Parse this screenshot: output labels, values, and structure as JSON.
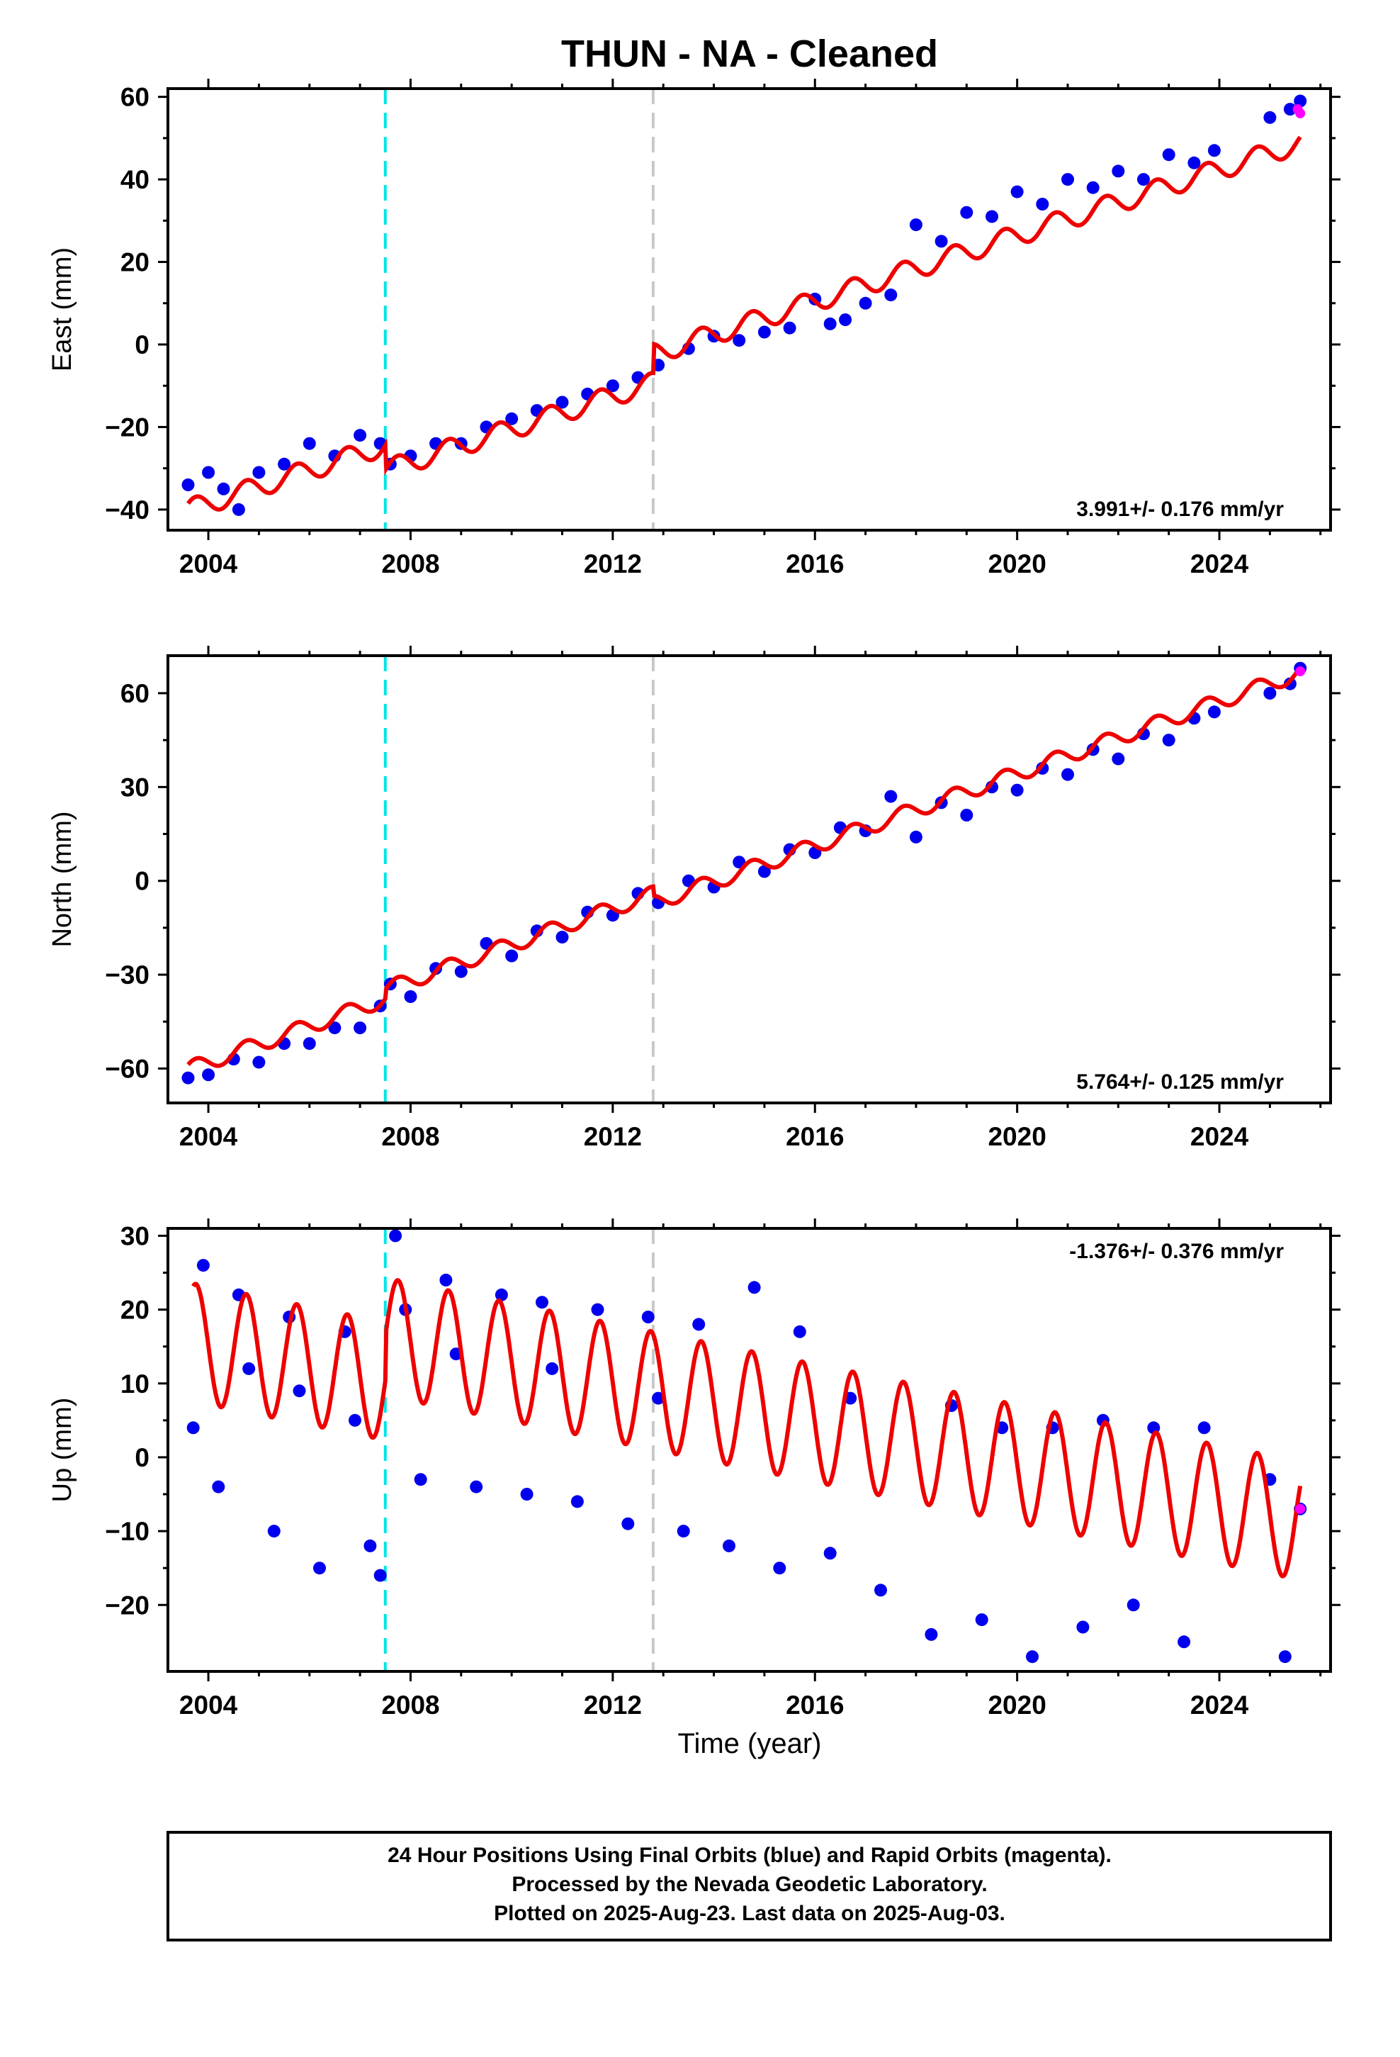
{
  "chart_data": {
    "type": "scatter",
    "title": "THUN  - NA - Cleaned",
    "xlabel": "Time (year)",
    "xlim": [
      2003.2,
      2026.2
    ],
    "x_ticks": [
      2004,
      2008,
      2012,
      2016,
      2020,
      2024
    ],
    "x_tick_labels": [
      "2004",
      "2008",
      "2012",
      "2016",
      "2020",
      "2024"
    ],
    "events": [
      {
        "x": 2007.5,
        "color": "#00e5e5",
        "style": "dashed"
      },
      {
        "x": 2012.8,
        "color": "#c8c8c8",
        "style": "dashed"
      }
    ],
    "colors": {
      "final_orbits": "#0000ee",
      "rapid_orbits": "#ff00ff",
      "model": "#ee0000"
    },
    "panels": [
      {
        "name": "east",
        "ylabel": "East (mm)",
        "ylim": [
          -45,
          62
        ],
        "y_ticks": [
          -40,
          -20,
          0,
          20,
          40,
          60
        ],
        "y_tick_labels": [
          "−40",
          "−20",
          "0",
          "20",
          "40",
          "60"
        ],
        "rate_label": "3.991+/- 0.176 mm/yr",
        "rate_position": "bottom-right",
        "final_orbits": {
          "x": [
            2003.6,
            2004.0,
            2004.3,
            2004.6,
            2005.0,
            2005.5,
            2006.0,
            2006.5,
            2007.0,
            2007.4,
            2007.6,
            2008.0,
            2008.5,
            2009.0,
            2009.5,
            2010.0,
            2010.5,
            2011.0,
            2011.5,
            2012.0,
            2012.5,
            2012.9,
            2013.5,
            2014.0,
            2014.5,
            2015.0,
            2015.5,
            2016.0,
            2016.3,
            2016.6,
            2017.0,
            2017.5,
            2018.0,
            2018.5,
            2019.0,
            2019.5,
            2020.0,
            2020.5,
            2021.0,
            2021.5,
            2022.0,
            2022.5,
            2023.0,
            2023.5,
            2023.9,
            2025.0,
            2025.4,
            2025.6
          ],
          "y": [
            -34,
            -31,
            -35,
            -40,
            -31,
            -29,
            -24,
            -27,
            -22,
            -24,
            -29,
            -27,
            -24,
            -24,
            -20,
            -18,
            -16,
            -14,
            -12,
            -10,
            -8,
            -5,
            -1,
            2,
            1,
            3,
            4,
            11,
            5,
            6,
            10,
            12,
            29,
            25,
            32,
            31,
            37,
            34,
            40,
            38,
            42,
            40,
            46,
            44,
            47,
            55,
            57,
            59
          ]
        },
        "rapid_orbits": {
          "x": [
            2025.55,
            2025.6
          ],
          "y": [
            57,
            56
          ]
        },
        "model": {
          "rate": 3.991,
          "offsets": [
            {
              "x": 2007.5,
              "dy": -6
            },
            {
              "x": 2012.8,
              "dy": 7
            }
          ],
          "seasonal_amplitude": 2.5,
          "value_at_2015": 5.5
        }
      },
      {
        "name": "north",
        "ylabel": "North (mm)",
        "ylim": [
          -71,
          72
        ],
        "y_ticks": [
          -60,
          -30,
          0,
          30,
          60
        ],
        "y_tick_labels": [
          "−60",
          "−30",
          "0",
          "30",
          "60"
        ],
        "rate_label": "5.764+/- 0.125 mm/yr",
        "rate_position": "bottom-right",
        "final_orbits": {
          "x": [
            2003.6,
            2004.0,
            2004.5,
            2005.0,
            2005.5,
            2006.0,
            2006.5,
            2007.0,
            2007.4,
            2007.6,
            2008.0,
            2008.5,
            2009.0,
            2009.5,
            2010.0,
            2010.5,
            2011.0,
            2011.5,
            2012.0,
            2012.5,
            2012.9,
            2013.5,
            2014.0,
            2014.5,
            2015.0,
            2015.5,
            2016.0,
            2016.5,
            2017.0,
            2017.5,
            2018.0,
            2018.5,
            2019.0,
            2019.5,
            2020.0,
            2020.5,
            2021.0,
            2021.5,
            2022.0,
            2022.5,
            2023.0,
            2023.5,
            2023.9,
            2025.0,
            2025.4,
            2025.6
          ],
          "y": [
            -63,
            -62,
            -57,
            -58,
            -52,
            -52,
            -47,
            -47,
            -40,
            -33,
            -37,
            -28,
            -29,
            -20,
            -24,
            -16,
            -18,
            -10,
            -11,
            -4,
            -7,
            0,
            -2,
            6,
            3,
            10,
            9,
            17,
            16,
            27,
            14,
            25,
            21,
            30,
            29,
            36,
            34,
            42,
            39,
            47,
            45,
            52,
            54,
            60,
            63,
            68
          ]
        },
        "rapid_orbits": {
          "x": [
            2025.6
          ],
          "y": [
            67
          ]
        },
        "model": {
          "rate": 5.764,
          "offsets": [
            {
              "x": 2007.5,
              "dy": 3
            },
            {
              "x": 2012.8,
              "dy": -3
            }
          ],
          "seasonal_amplitude": 2.5,
          "value_at_2015": 5.5
        }
      },
      {
        "name": "up",
        "ylabel": "Up (mm)",
        "ylim": [
          -29,
          31
        ],
        "y_ticks": [
          -20,
          -10,
          0,
          10,
          20,
          30
        ],
        "y_tick_labels": [
          "−20",
          "−10",
          "0",
          "10",
          "20",
          "30"
        ],
        "rate_label": "-1.376+/- 0.376 mm/yr",
        "rate_position": "top-right",
        "final_orbits": {
          "x": [
            2003.7,
            2003.9,
            2004.2,
            2004.6,
            2004.8,
            2005.3,
            2005.6,
            2005.8,
            2006.2,
            2006.7,
            2006.9,
            2007.2,
            2007.4,
            2007.7,
            2007.9,
            2008.2,
            2008.7,
            2008.9,
            2009.3,
            2009.8,
            2010.3,
            2010.6,
            2010.8,
            2011.3,
            2011.7,
            2012.3,
            2012.7,
            2012.9,
            2013.4,
            2013.7,
            2014.3,
            2014.8,
            2015.3,
            2015.7,
            2016.3,
            2016.7,
            2017.3,
            2018.3,
            2018.7,
            2019.3,
            2019.7,
            2020.3,
            2020.7,
            2021.3,
            2021.7,
            2022.3,
            2022.7,
            2023.3,
            2023.7,
            2025.0,
            2025.3,
            2025.6
          ],
          "y": [
            4,
            26,
            -4,
            22,
            12,
            -10,
            19,
            9,
            -15,
            17,
            5,
            -12,
            -16,
            30,
            20,
            -3,
            24,
            14,
            -4,
            22,
            -5,
            21,
            12,
            -6,
            20,
            -9,
            19,
            8,
            -10,
            18,
            -12,
            23,
            -15,
            17,
            -13,
            8,
            -18,
            -24,
            7,
            -22,
            4,
            -27,
            4,
            -23,
            5,
            -20,
            4,
            -25,
            4,
            -3,
            -27,
            -7
          ]
        },
        "rapid_orbits": {
          "x": [
            2025.6
          ],
          "y": [
            -7
          ]
        },
        "model": {
          "rate": -1.376,
          "offsets": [
            {
              "x": 2007.5,
              "dy": 6
            }
          ],
          "seasonal_amplitude": 8,
          "value_at_2015": 0
        }
      }
    ]
  },
  "footer": {
    "line1": "24 Hour Positions Using Final Orbits (blue) and Rapid Orbits (magenta).",
    "line2": "Processed by the Nevada Geodetic Laboratory.",
    "line3": "Plotted on 2025-Aug-23. Last data on 2025-Aug-03."
  }
}
